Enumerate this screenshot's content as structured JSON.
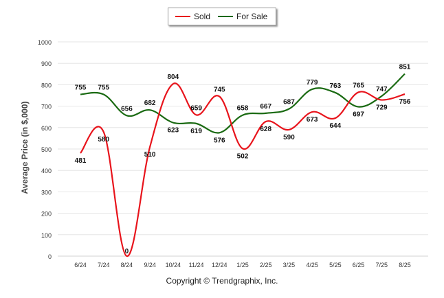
{
  "chart_data": {
    "type": "line",
    "title": "",
    "xlabel": "",
    "ylabel": "Average Price (in $,000)",
    "ylim": [
      0,
      1000
    ],
    "yticks": [
      0,
      100,
      200,
      300,
      400,
      500,
      600,
      700,
      800,
      900,
      1000
    ],
    "categories": [
      "6/24",
      "7/24",
      "8/24",
      "9/24",
      "10/24",
      "11/24",
      "12/24",
      "1/25",
      "2/25",
      "3/25",
      "4/25",
      "5/25",
      "6/25",
      "7/25",
      "8/25"
    ],
    "series": [
      {
        "name": "Sold",
        "color": "#e8141c",
        "values": [
          481,
          580,
          0,
          510,
          804,
          659,
          745,
          502,
          628,
          590,
          673,
          644,
          765,
          729,
          756
        ]
      },
      {
        "name": "For Sale",
        "color": "#1a6a12",
        "values": [
          755,
          755,
          656,
          682,
          623,
          619,
          576,
          658,
          667,
          687,
          779,
          763,
          697,
          747,
          851
        ]
      }
    ],
    "legend_position": "top-center",
    "grid": true
  },
  "footer": {
    "copyright": "Copyright © Trendgraphix, Inc."
  }
}
